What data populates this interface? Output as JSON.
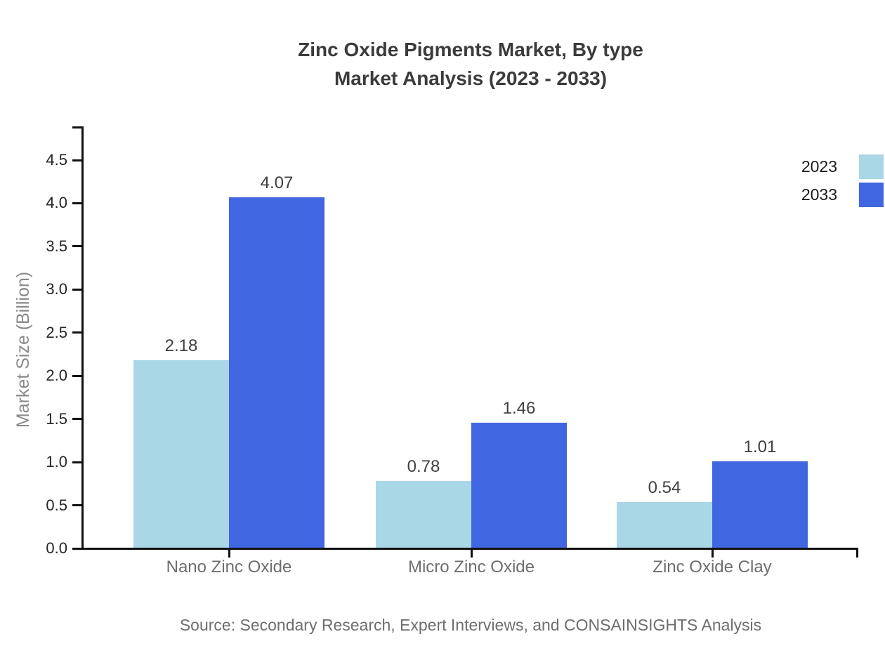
{
  "title": {
    "line1": "Zinc Oxide Pigments Market, By type",
    "line2": "Market Analysis (2023 - 2033)"
  },
  "source_note": "Source: Secondary Research, Expert Interviews, and CONSAINSIGHTS Analysis",
  "chart_data": {
    "type": "bar",
    "title": "Zinc Oxide Pigments Market, By type Market Analysis (2023 - 2033)",
    "categories": [
      "Nano Zinc Oxide",
      "Micro Zinc Oxide",
      "Zinc Oxide Clay"
    ],
    "series": [
      {
        "name": "2023",
        "color": "#aad7e6",
        "values": [
          2.18,
          0.78,
          0.54
        ],
        "labels": [
          "2.18",
          "0.78",
          "0.54"
        ]
      },
      {
        "name": "2033",
        "color": "#4067e1",
        "values": [
          4.07,
          1.46,
          1.01
        ],
        "labels": [
          "4.07",
          "1.46",
          "1.01"
        ]
      }
    ],
    "ylabel": "Market Size (Billion)",
    "xlabel": "",
    "ylim": [
      0,
      4.5
    ],
    "ytick_step": 0.5,
    "yticks": [
      "0.0",
      "0.5",
      "1.0",
      "1.5",
      "2.0",
      "2.5",
      "3.0",
      "3.5",
      "4.0",
      "4.5"
    ],
    "grid": false,
    "legend_position": "top-right"
  },
  "colors": {
    "background": "#ffffff",
    "series_2023": "#aad7e6",
    "series_2033": "#4067e1",
    "axis": "#111111",
    "title_text": "#3b3b3b",
    "ytick_label": "#262626",
    "category_label": "#6e6e6e",
    "value_label": "#404040",
    "axis_title": "#8a8a8a",
    "legend_text": "#1a1a1a",
    "source_text": "#6e6e6e"
  }
}
